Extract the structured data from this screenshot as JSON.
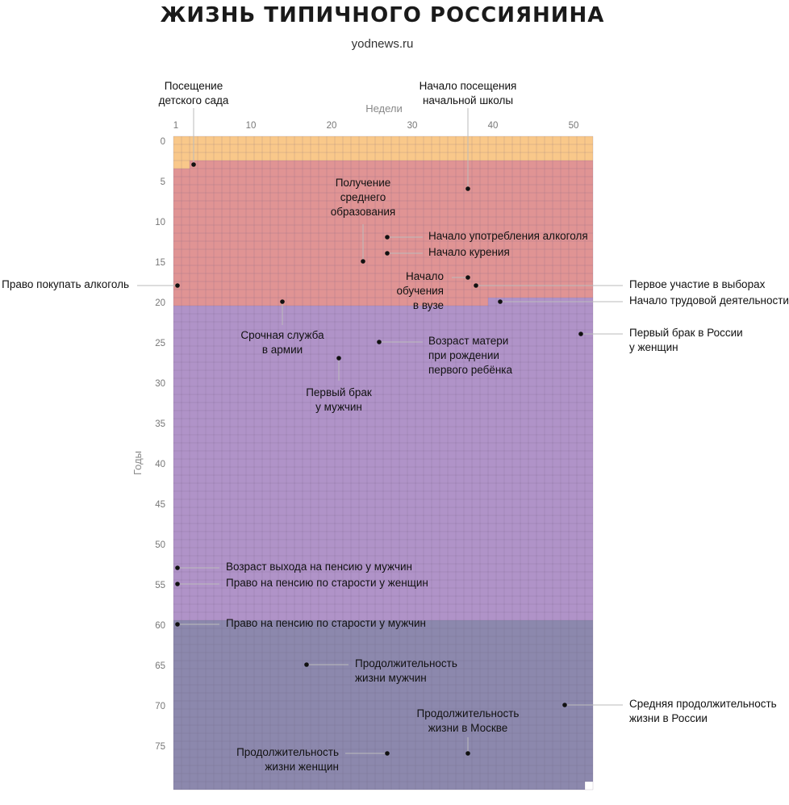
{
  "header": {
    "title": "ЖИЗНЬ ТИПИЧНОГО РОССИЯНИНА",
    "subtitle": "yodnews.ru"
  },
  "axes": {
    "x_label": "Недели",
    "y_label": "Годы",
    "x_ticks": [
      1,
      10,
      20,
      30,
      40,
      50
    ],
    "y_ticks": [
      0,
      5,
      10,
      15,
      20,
      25,
      30,
      35,
      40,
      45,
      50,
      55,
      60,
      65,
      70,
      75
    ]
  },
  "colors": {
    "stage_childhood": "#f9c88a",
    "stage_school": "#e09494",
    "stage_adult": "#b093c8",
    "stage_retirement": "#8c88ad",
    "grid_line": "#6a5a7a",
    "leader": "#bbbbbb",
    "dot": "#111111"
  },
  "chart_data": {
    "type": "scatter",
    "x_range": [
      1,
      52
    ],
    "y_range": [
      0,
      80
    ],
    "stages": [
      {
        "name": "childhood",
        "color": "#f9c88a",
        "start": {
          "year": 0,
          "week": 1
        },
        "end": {
          "year": 3,
          "week": 3
        }
      },
      {
        "name": "school",
        "color": "#e09494",
        "start": {
          "year": 3,
          "week": 3
        },
        "end": {
          "year": 20,
          "week": 40
        }
      },
      {
        "name": "adult",
        "color": "#b093c8",
        "start": {
          "year": 20,
          "week": 40
        },
        "end": {
          "year": 60,
          "week": 1
        }
      },
      {
        "name": "retirement",
        "color": "#8c88ad",
        "start": {
          "year": 60,
          "week": 1
        },
        "end": {
          "year": 80,
          "week": 52
        }
      }
    ],
    "events": [
      {
        "label": [
          "Посещение",
          "детского сада"
        ],
        "week": 3,
        "year": 3
      },
      {
        "label": [
          "Начало посещения",
          "начальной школы"
        ],
        "week": 37,
        "year": 6
      },
      {
        "label": [
          "Получение",
          "среднего",
          "образования"
        ],
        "week": 24,
        "year": 15
      },
      {
        "label": [
          "Начало употребления алкоголя"
        ],
        "week": 27,
        "year": 12
      },
      {
        "label": [
          "Начало курения"
        ],
        "week": 27,
        "year": 14
      },
      {
        "label": [
          "Право покупать алкоголь"
        ],
        "week": 1,
        "year": 18
      },
      {
        "label": [
          "Начало",
          "обучения",
          "в вузе"
        ],
        "week": 37,
        "year": 17
      },
      {
        "label": [
          "Первое участие в выборах"
        ],
        "week": 38,
        "year": 18
      },
      {
        "label": [
          "Начало трудовой деятельности"
        ],
        "week": 41,
        "year": 20
      },
      {
        "label": [
          "Срочная служба",
          "в армии"
        ],
        "week": 14,
        "year": 20
      },
      {
        "label": [
          "Первый брак в России",
          "у женщин"
        ],
        "week": 51,
        "year": 24
      },
      {
        "label": [
          "Возраст матери",
          "при рождении",
          "первого ребёнка"
        ],
        "week": 26,
        "year": 25
      },
      {
        "label": [
          "Первый брак",
          "у мужчин"
        ],
        "week": 21,
        "year": 27
      },
      {
        "label": [
          "Возраст выхода на пенсию у мужчин"
        ],
        "week": 1,
        "year": 53
      },
      {
        "label": [
          "Право на пенсию по старости у женщин"
        ],
        "week": 1,
        "year": 55
      },
      {
        "label": [
          "Право на пенсию по старости у мужчин"
        ],
        "week": 1,
        "year": 60
      },
      {
        "label": [
          "Продолжительность",
          "жизни мужчин"
        ],
        "week": 17,
        "year": 65
      },
      {
        "label": [
          "Средняя продолжительность",
          "жизни в России"
        ],
        "week": 49,
        "year": 70
      },
      {
        "label": [
          "Продолжительность",
          "жизни в Москве"
        ],
        "week": 37,
        "year": 76
      },
      {
        "label": [
          "Продолжительность",
          "жизни женщин"
        ],
        "week": 27,
        "year": 76
      }
    ]
  }
}
